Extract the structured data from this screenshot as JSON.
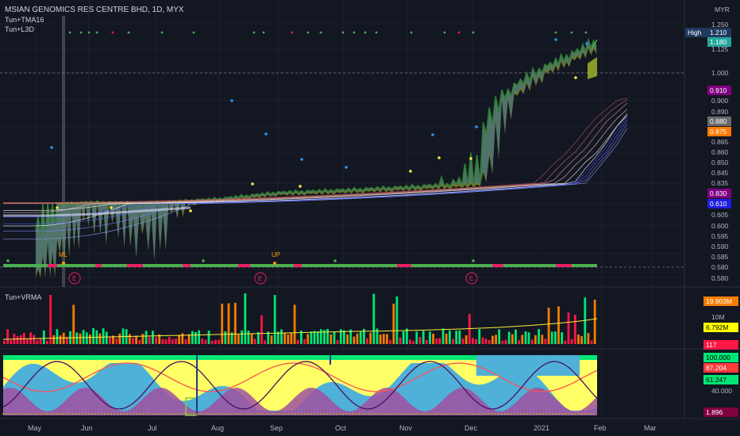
{
  "header": {
    "symbol_title": "MSIAN GENOMICS RES CENTRE BHD, 1D, MYX",
    "currency": "MYR",
    "indicator_1": "Tun+TMA16",
    "indicator_2": "Tun+L3D",
    "volume_label": "Tun+VRMA"
  },
  "colors": {
    "background": "#131722",
    "up": "#26a69a",
    "candle_area": "#3b6fa5",
    "yellow_area": "#8a9a2a",
    "volume_orange": "#f57c00",
    "volume_green": "#00e676",
    "volume_red": "#ff1744",
    "stoch_yellow": "#ffff66",
    "stoch_blue": "#4fb0d8",
    "stoch_magenta": "#a050a0",
    "stoch_green": "#00e676"
  },
  "chart_data": [
    {
      "type": "area",
      "name": "price",
      "x": [
        "May",
        "Jun",
        "Jul",
        "Aug",
        "Sep",
        "Oct",
        "Nov",
        "Dec",
        "2021",
        "Feb",
        "Mar"
      ],
      "y": [
        0.598,
        0.628,
        0.62,
        0.665,
        0.732,
        0.76,
        0.793,
        0.835,
        1.02,
        1.18,
        null
      ],
      "annotations": [
        "ML",
        "UP"
      ],
      "event_markers": [
        "E",
        "E",
        "E"
      ]
    },
    {
      "type": "bar",
      "name": "volume",
      "ticks": [
        "10M"
      ],
      "last_value": "19.903M",
      "ma_value": "6.792M",
      "count_value": "117"
    },
    {
      "type": "area",
      "name": "oscillator",
      "ticks": [
        "40.000"
      ],
      "ylim": [
        0,
        100
      ]
    }
  ],
  "price_axis": {
    "ticks": [
      "1.250",
      "1.125",
      "1.000",
      "0.900",
      "0.890",
      "0.865",
      "0.860",
      "0.850",
      "0.845",
      "0.835",
      "0.605",
      "0.600",
      "0.595",
      "0.590",
      "0.585",
      "0.580",
      "0.580"
    ],
    "badges": [
      {
        "text": "High",
        "value": "1.210",
        "bg": "#1e3a5f",
        "fg": "#ffffff"
      },
      {
        "text": "",
        "value": "1.180",
        "bg": "#26a69a",
        "fg": "#ffffff"
      },
      {
        "text": "",
        "value": "0.910",
        "bg": "#800080",
        "fg": "#ffffff"
      },
      {
        "text": "",
        "value": "0.880",
        "bg": "#6a6a6a",
        "fg": "#ffffff"
      },
      {
        "text": "",
        "value": "0.875",
        "bg": "#ff7a00",
        "fg": "#ffffff"
      },
      {
        "text": "",
        "value": "0.830",
        "bg": "#800080",
        "fg": "#ffffff"
      },
      {
        "text": "",
        "value": "0.610",
        "bg": "#1e1ee0",
        "fg": "#ffffff"
      }
    ]
  },
  "volume_axis": {
    "badges": [
      {
        "value": "19.903M",
        "bg": "#f57c00",
        "fg": "#ffffff"
      },
      {
        "value": "6.792M",
        "bg": "#ffff00",
        "fg": "#000000"
      },
      {
        "value": "117",
        "bg": "#ff1744",
        "fg": "#ffffff"
      }
    ]
  },
  "osc_axis": {
    "badges": [
      {
        "value": "100.000",
        "bg": "#00e676",
        "fg": "#000000"
      },
      {
        "value": "87.204",
        "bg": "#ff3b3b",
        "fg": "#ffffff"
      },
      {
        "value": "61.247",
        "bg": "#00e676",
        "fg": "#000000"
      },
      {
        "value": "1.896",
        "bg": "#800040",
        "fg": "#ffffff"
      }
    ]
  }
}
